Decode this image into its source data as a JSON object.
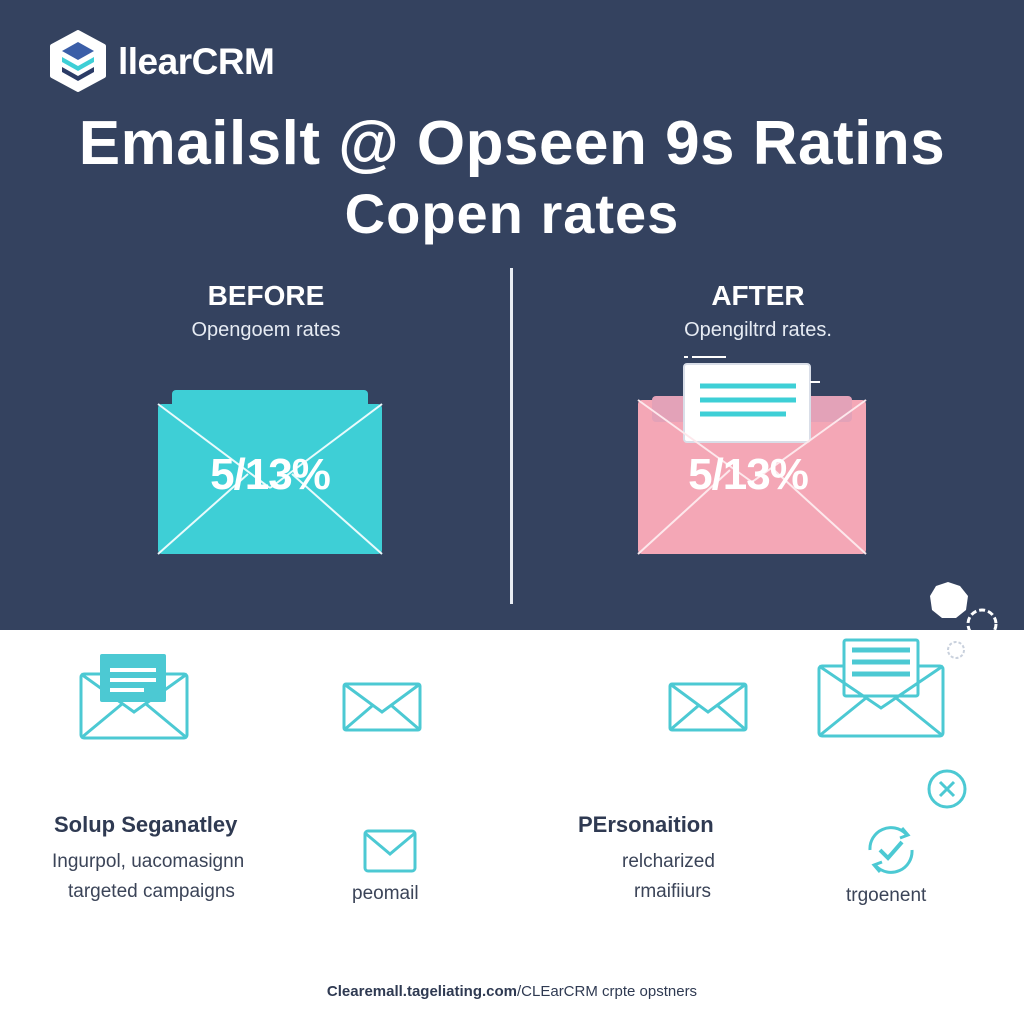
{
  "brand": {
    "name": "llearCRM"
  },
  "title": {
    "line1": "Emailslt @ Opseen 9s Ratins",
    "line2": "Copen rates"
  },
  "before": {
    "heading": "BEFORE",
    "subheading": "Opengoem rates",
    "value": "5/13%"
  },
  "after": {
    "heading": "AFTER",
    "subheading": "Opengiltrd rates.",
    "value": "5/13%"
  },
  "features": {
    "left": {
      "title": "Solup Seganatley",
      "line1": "Ingurpol, uacomasignn",
      "line2": "targeted campaigns"
    },
    "left_icon_label": "peomail",
    "right": {
      "title": "PErsonaition",
      "line1": "relcharized",
      "line2": "rmaifiiurs"
    },
    "right_icon_label": "trgoenent"
  },
  "footer": {
    "domain": "Clearemall.tageliating.com",
    "rest": "/CLEarCRM crpte opstners"
  },
  "colors": {
    "header_bg": "#34425f",
    "before_envelope": "#3ecfd6",
    "after_envelope": "#f4a7b6",
    "icon_teal": "#4cc9d3"
  },
  "icons": [
    "logo-icon",
    "envelope-icon",
    "envelope-letter-icon",
    "check-refresh-icon",
    "close-circle-icon"
  ]
}
